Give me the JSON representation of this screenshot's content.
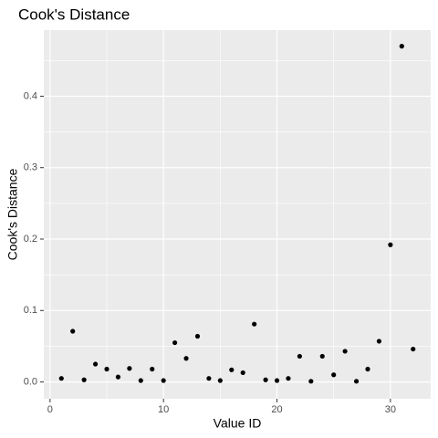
{
  "chart_data": {
    "type": "scatter",
    "title": "Cook's Distance",
    "x_label": "Value ID",
    "y_label": "Cook's Distance",
    "x": [
      1,
      2,
      3,
      4,
      5,
      6,
      7,
      8,
      9,
      10,
      11,
      12,
      13,
      14,
      15,
      16,
      17,
      18,
      19,
      20,
      21,
      22,
      23,
      24,
      25,
      26,
      27,
      28,
      29,
      30,
      31,
      32
    ],
    "values": [
      0.005,
      0.071,
      0.003,
      0.025,
      0.018,
      0.007,
      0.019,
      0.002,
      0.018,
      0.002,
      0.055,
      0.033,
      0.064,
      0.005,
      0.002,
      0.017,
      0.013,
      0.081,
      0.003,
      0.002,
      0.005,
      0.036,
      0.001,
      0.036,
      0.01,
      0.043,
      0.001,
      0.018,
      0.057,
      0.192,
      0.47,
      0.046
    ],
    "color": "#000000",
    "xlim": [
      -0.55,
      33.55
    ],
    "ylim": [
      -0.0235,
      0.4925
    ],
    "xticks": [
      0,
      10,
      20,
      30
    ],
    "yticks": [
      {
        "value": 0,
        "label": "0.0"
      },
      0.1,
      0.2,
      0.3,
      0.4
    ],
    "x_minor_ticks": [
      5,
      15,
      25
    ],
    "y_minor_ticks": [
      0.05,
      0.15,
      0.25,
      0.35,
      0.45
    ],
    "grid": true,
    "panel_color": "#ebebeb"
  }
}
